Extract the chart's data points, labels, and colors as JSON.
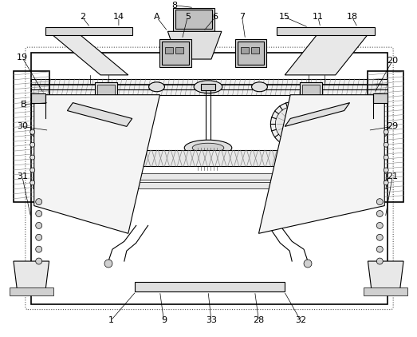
{
  "bg_color": "#ffffff",
  "line_color": "#000000",
  "figsize": [
    5.23,
    4.22
  ],
  "dpi": 100,
  "font_size": 8.0
}
